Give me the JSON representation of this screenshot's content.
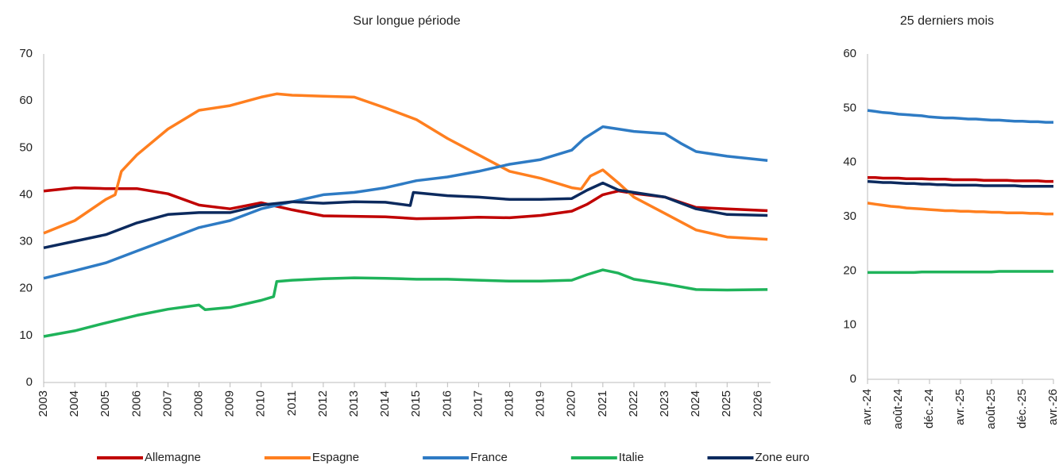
{
  "chart_data": [
    {
      "type": "line",
      "title": "Sur longue période",
      "xlim": [
        2003,
        2026.4
      ],
      "xticks": [
        2003,
        2004,
        2005,
        2006,
        2007,
        2008,
        2009,
        2010,
        2011,
        2012,
        2013,
        2014,
        2015,
        2016,
        2017,
        2018,
        2019,
        2020,
        2021,
        2022,
        2023,
        2024,
        2025,
        2026
      ],
      "ylim": [
        0,
        70
      ],
      "yticks": [
        0,
        10,
        20,
        30,
        40,
        50,
        60,
        70
      ],
      "grid": false,
      "legend": "bottom",
      "series": [
        {
          "name": "Allemagne",
          "color": "#c00000",
          "x": [
            2003,
            2004,
            2005,
            2006,
            2007,
            2008,
            2009,
            2010,
            2011,
            2012,
            2013,
            2014,
            2015,
            2016,
            2017,
            2018,
            2019,
            2020,
            2020.5,
            2021,
            2021.5,
            2022,
            2023,
            2024,
            2025,
            2026.3
          ],
          "values": [
            40.8,
            41.5,
            41.3,
            41.3,
            40.2,
            37.8,
            37,
            38.3,
            36.8,
            35.5,
            35.4,
            35.3,
            34.9,
            35,
            35.2,
            35.1,
            35.6,
            36.5,
            38,
            40,
            40.8,
            40.3,
            39.5,
            37.3,
            37,
            36.6
          ]
        },
        {
          "name": "Espagne",
          "color": "#ff7f1f",
          "x": [
            2003,
            2004,
            2005,
            2005.3,
            2005.5,
            2006,
            2007,
            2008,
            2009,
            2010,
            2010.5,
            2011,
            2012,
            2013,
            2014,
            2015,
            2016,
            2017,
            2018,
            2019,
            2020,
            2020.3,
            2020.6,
            2021,
            2021.5,
            2022,
            2023,
            2024,
            2025,
            2026.3
          ],
          "values": [
            31.8,
            34.5,
            39,
            40,
            45,
            48.5,
            54,
            58,
            59,
            60.8,
            61.5,
            61.2,
            61,
            60.8,
            58.5,
            56,
            52,
            48.5,
            45,
            43.5,
            41.5,
            41.2,
            44,
            45.3,
            42.5,
            39.5,
            36,
            32.5,
            31,
            30.5
          ]
        },
        {
          "name": "France",
          "color": "#2e7bc4",
          "x": [
            2003,
            2004,
            2005,
            2006,
            2007,
            2008,
            2009,
            2010,
            2011,
            2012,
            2013,
            2014,
            2015,
            2016,
            2017,
            2018,
            2019,
            2020,
            2020.4,
            2021,
            2021.5,
            2022,
            2023,
            2023.5,
            2024,
            2025,
            2026.3
          ],
          "values": [
            22.2,
            23.8,
            25.5,
            28,
            30.5,
            33,
            34.5,
            37,
            38.5,
            40,
            40.5,
            41.5,
            43,
            43.8,
            45,
            46.5,
            47.5,
            49.5,
            52,
            54.5,
            54,
            53.5,
            53,
            51,
            49.2,
            48.2,
            47.3
          ]
        },
        {
          "name": "Italie",
          "color": "#1fb35a",
          "x": [
            2003,
            2004,
            2005,
            2006,
            2007,
            2008,
            2008.2,
            2009,
            2010,
            2010.4,
            2010.5,
            2011,
            2012,
            2013,
            2014,
            2015,
            2016,
            2017,
            2018,
            2019,
            2020,
            2020.5,
            2021,
            2021.5,
            2022,
            2023,
            2024,
            2025,
            2026.3
          ],
          "values": [
            9.8,
            11,
            12.7,
            14.3,
            15.6,
            16.5,
            15.5,
            16,
            17.5,
            18.3,
            21.5,
            21.8,
            22.1,
            22.3,
            22.2,
            22,
            22,
            21.8,
            21.6,
            21.6,
            21.8,
            23,
            24,
            23.3,
            22,
            21,
            19.8,
            19.7,
            19.8
          ]
        },
        {
          "name": "Zone euro",
          "color": "#0c2a5e",
          "x": [
            2003,
            2004,
            2005,
            2006,
            2007,
            2008,
            2009,
            2010,
            2011,
            2012,
            2013,
            2014,
            2014.8,
            2014.9,
            2016,
            2017,
            2018,
            2019,
            2020,
            2020.5,
            2021,
            2021.5,
            2022,
            2023,
            2024,
            2025,
            2026.3
          ],
          "values": [
            28.7,
            30.1,
            31.5,
            34,
            35.8,
            36.2,
            36.2,
            37.8,
            38.5,
            38.2,
            38.5,
            38.4,
            37.7,
            40.5,
            39.8,
            39.5,
            39,
            39,
            39.2,
            41,
            42.5,
            41,
            40.5,
            39.5,
            37,
            35.8,
            35.6
          ]
        }
      ]
    },
    {
      "type": "line",
      "title": "25 derniers mois",
      "categories": [
        "avr.-24",
        null,
        null,
        null,
        "août-24",
        null,
        null,
        null,
        "déc.-24",
        null,
        null,
        null,
        "avr.-25",
        null,
        null,
        null,
        "août-25",
        null,
        null,
        null,
        "déc.-25",
        null,
        null,
        null,
        "avr.-26"
      ],
      "ylim": [
        0,
        60
      ],
      "yticks": [
        0,
        10,
        20,
        30,
        40,
        50,
        60
      ],
      "grid": false,
      "series": [
        {
          "color": "#c00000",
          "values": [
            37.2,
            37.2,
            37.1,
            37.1,
            37.1,
            37.0,
            37.0,
            37.0,
            36.9,
            36.9,
            36.9,
            36.8,
            36.8,
            36.8,
            36.8,
            36.7,
            36.7,
            36.7,
            36.7,
            36.6,
            36.6,
            36.6,
            36.6,
            36.5,
            36.5
          ]
        },
        {
          "color": "#ff7f1f",
          "values": [
            32.5,
            32.3,
            32.1,
            31.9,
            31.8,
            31.6,
            31.5,
            31.4,
            31.3,
            31.2,
            31.1,
            31.1,
            31.0,
            31.0,
            30.9,
            30.9,
            30.8,
            30.8,
            30.7,
            30.7,
            30.7,
            30.6,
            30.6,
            30.5,
            30.5
          ]
        },
        {
          "color": "#2e7bc4",
          "values": [
            49.6,
            49.4,
            49.2,
            49.1,
            48.9,
            48.8,
            48.7,
            48.6,
            48.4,
            48.3,
            48.2,
            48.2,
            48.1,
            48.0,
            48.0,
            47.9,
            47.8,
            47.8,
            47.7,
            47.6,
            47.6,
            47.5,
            47.5,
            47.4,
            47.4
          ]
        },
        {
          "color": "#1fb35a",
          "values": [
            19.7,
            19.7,
            19.7,
            19.7,
            19.7,
            19.7,
            19.7,
            19.8,
            19.8,
            19.8,
            19.8,
            19.8,
            19.8,
            19.8,
            19.8,
            19.8,
            19.8,
            19.9,
            19.9,
            19.9,
            19.9,
            19.9,
            19.9,
            19.9,
            19.9
          ]
        },
        {
          "color": "#0c2a5e",
          "values": [
            36.5,
            36.4,
            36.3,
            36.3,
            36.2,
            36.1,
            36.1,
            36.0,
            36.0,
            35.9,
            35.9,
            35.8,
            35.8,
            35.8,
            35.8,
            35.7,
            35.7,
            35.7,
            35.7,
            35.7,
            35.6,
            35.6,
            35.6,
            35.6,
            35.6
          ]
        }
      ]
    }
  ]
}
